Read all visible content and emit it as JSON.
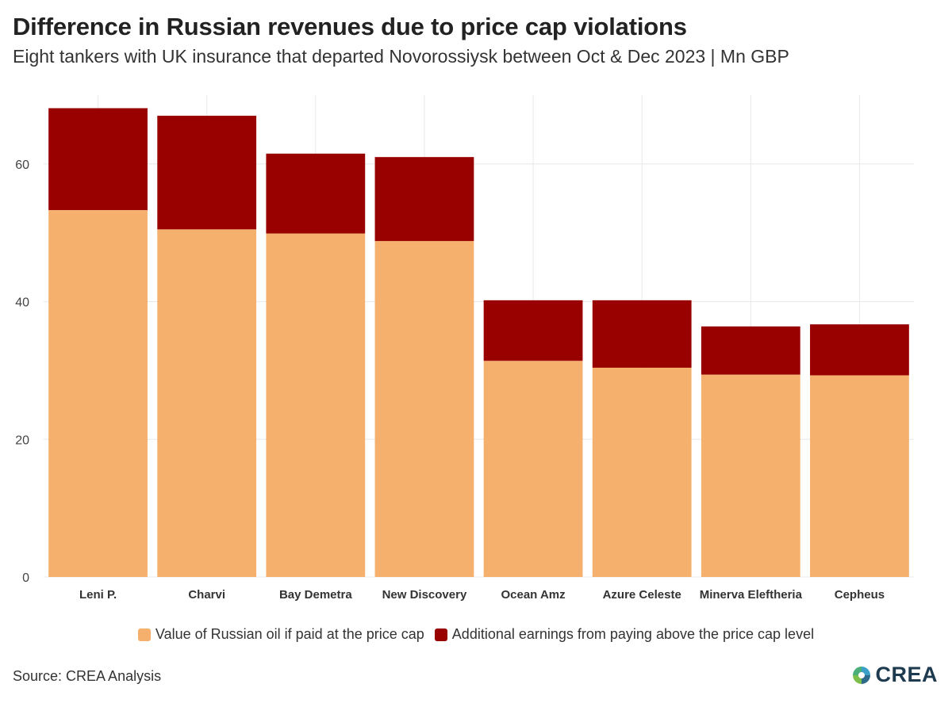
{
  "title": "Difference in Russian revenues due to price cap violations",
  "subtitle": "Eight tankers with UK insurance that departed Novorossiysk between Oct & Dec 2023 | Mn GBP",
  "source": "Source: CREA Analysis",
  "logo_text": "CREA",
  "colors": {
    "base": "#f5b06e",
    "extra": "#990000",
    "grid": "#e8e8e8"
  },
  "chart_data": {
    "type": "bar",
    "stacked": true,
    "title": "Difference in Russian revenues due to price cap violations",
    "subtitle": "Eight tankers with UK insurance that departed Novorossiysk between Oct & Dec 2023 | Mn GBP",
    "xlabel": "",
    "ylabel": "",
    "ylim": [
      0,
      70
    ],
    "yticks": [
      0,
      20,
      40,
      60
    ],
    "categories": [
      "Leni P.",
      "Charvi",
      "Bay Demetra",
      "New Discovery",
      "Ocean Amz",
      "Azure Celeste",
      "Minerva Eleftheria",
      "Cepheus"
    ],
    "series": [
      {
        "name": "Value of Russian oil if paid at the price cap",
        "color": "#f5b06e",
        "values": [
          53.3,
          50.5,
          49.9,
          48.8,
          31.4,
          30.4,
          29.4,
          29.3
        ]
      },
      {
        "name": "Additional earnings from paying above the price cap level",
        "color": "#990000",
        "values": [
          14.8,
          16.5,
          11.6,
          12.2,
          8.8,
          9.8,
          7.0,
          7.4
        ]
      }
    ],
    "legend_position": "bottom"
  }
}
